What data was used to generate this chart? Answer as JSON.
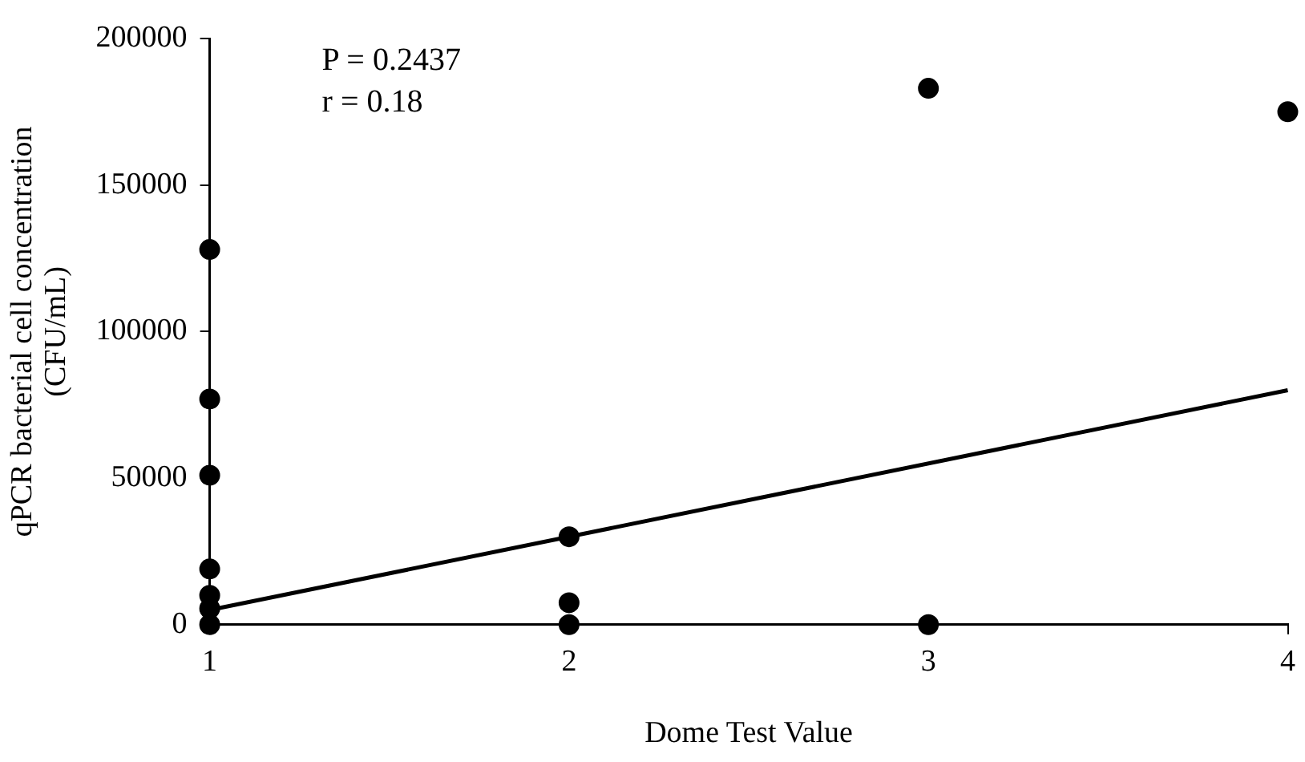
{
  "chart_data": {
    "type": "scatter",
    "xlabel": "Dome Test Value",
    "ylabel": "qPCR bacterial cell concentration\n(CFU/mL)",
    "xlim": [
      1,
      4
    ],
    "xticks": [
      1,
      2,
      3,
      4
    ],
    "ylim": [
      0,
      200000
    ],
    "yticks": [
      0,
      50000,
      100000,
      150000,
      200000
    ],
    "grid": false,
    "legend": false,
    "annotations": [
      "P = 0.2437",
      "r = 0.18"
    ],
    "series": [
      {
        "color": "#000000",
        "marker": "circle",
        "x": [
          1,
          1,
          1,
          1,
          1,
          1,
          1,
          2,
          2,
          2,
          3,
          3,
          4
        ],
        "values": [
          128000,
          77000,
          51000,
          19000,
          10000,
          5500,
          0,
          30000,
          7500,
          0,
          183000,
          0,
          175000
        ]
      },
      {
        "type": "line",
        "marker": "none",
        "color": "#000000",
        "x": [
          1,
          4
        ],
        "values": [
          5000,
          80000
        ]
      }
    ]
  }
}
